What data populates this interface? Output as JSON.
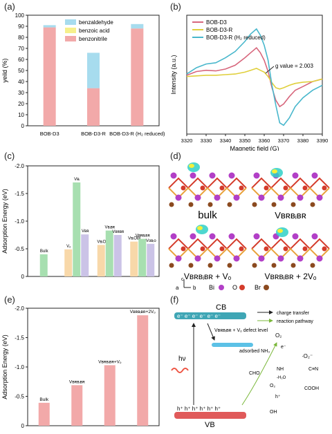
{
  "panel_labels": {
    "a": "(a)",
    "b": "(b)",
    "c": "(c)",
    "d": "(d)",
    "e": "(e)",
    "f": "(f)"
  },
  "chart_data": [
    {
      "type": "bar",
      "panel": "a",
      "ylabel": "yeild (%)",
      "ylim": [
        0,
        100
      ],
      "yticks": [
        "0",
        "10",
        "20",
        "30",
        "40",
        "50",
        "60",
        "70",
        "80",
        "90",
        "100"
      ],
      "categories": [
        "BOB-D3",
        "BOB-D3-R",
        "BOB-D3-R (H₂ reduced)"
      ],
      "series": [
        {
          "name": "benzonitrile",
          "color": "#f2a9a9",
          "values": [
            89,
            34,
            88
          ]
        },
        {
          "name": "benzoic acid",
          "color": "#f6f08c",
          "values": [
            0,
            0,
            0
          ]
        },
        {
          "name": "benzaldehyde",
          "color": "#a7dcee",
          "values": [
            2,
            32,
            4
          ]
        }
      ],
      "legend_order": [
        "benzaldehyde",
        "benzoic acid",
        "benzonitrile"
      ],
      "stacked": true
    },
    {
      "type": "line",
      "panel": "b",
      "xlabel": "Magnetic field (G)",
      "ylabel": "Intensity (a.u.)",
      "xlim": [
        3320,
        3390
      ],
      "xticks": [
        "3320",
        "3330",
        "3340",
        "3350",
        "3360",
        "3370",
        "3380",
        "3390"
      ],
      "legend_position": "top-left",
      "annotation": "g value = 2.003",
      "series": [
        {
          "name": "BOB-D3",
          "color": "#d7667c",
          "x": [
            3320,
            3325,
            3330,
            3335,
            3340,
            3345,
            3350,
            3353,
            3356,
            3358,
            3360,
            3362,
            3364,
            3366,
            3368,
            3370,
            3373,
            3376,
            3380,
            3385,
            3390
          ],
          "y": [
            0.2,
            0.5,
            0.6,
            0.55,
            0.7,
            1.0,
            1.6,
            2.0,
            2.4,
            2.0,
            1.4,
            0.5,
            -0.8,
            -1.8,
            -2.3,
            -2.1,
            -1.5,
            -1.0,
            -0.7,
            -0.3,
            -0.1
          ]
        },
        {
          "name": "BOB-D3-R",
          "color": "#e0cf3b",
          "x": [
            3320,
            3325,
            3330,
            3335,
            3340,
            3345,
            3350,
            3353,
            3356,
            3358,
            3360,
            3362,
            3364,
            3366,
            3368,
            3370,
            3373,
            3376,
            3380,
            3385,
            3390
          ],
          "y": [
            0.1,
            0.15,
            0.2,
            0.2,
            0.25,
            0.3,
            0.45,
            0.6,
            0.75,
            0.6,
            0.45,
            0.1,
            -0.4,
            -0.8,
            -0.9,
            -0.8,
            -0.6,
            -0.45,
            -0.35,
            -0.3,
            -0.1
          ]
        },
        {
          "name": "BOB-D3-R (H₂ reduced)",
          "color": "#48b7cc",
          "x": [
            3320,
            3325,
            3330,
            3335,
            3340,
            3345,
            3350,
            3353,
            3356,
            3358,
            3360,
            3362,
            3364,
            3366,
            3368,
            3370,
            3373,
            3376,
            3380,
            3385,
            3390
          ],
          "y": [
            0.3,
            0.8,
            1.1,
            1.2,
            1.6,
            2.1,
            2.9,
            3.5,
            3.9,
            3.4,
            2.6,
            1.4,
            -0.6,
            -2.2,
            -3.6,
            -3.8,
            -3.2,
            -2.3,
            -1.6,
            -1.0,
            -0.6
          ]
        }
      ]
    },
    {
      "type": "bar",
      "panel": "c",
      "ylabel": "Adsorption Energy (eV)",
      "ylim": [
        0,
        -2.0
      ],
      "yticks": [
        "0",
        "-0.5",
        "-1.0",
        "-1.5",
        "-2.0"
      ],
      "groups": [
        {
          "bars": [
            {
              "label": "Bulk",
              "value": -0.4,
              "color": "#a7dfb0"
            }
          ]
        },
        {
          "bars": [
            {
              "label": "Vₒ",
              "value": -0.49,
              "color": "#f8d8a9"
            },
            {
              "label": "Vʙᵢ",
              "value": -1.7,
              "color": "#a7dfb0"
            },
            {
              "label": "Vʙʀ",
              "value": -0.76,
              "color": "#cbc3e7"
            }
          ]
        },
        {
          "bars": [
            {
              "label": "VʙᵢO",
              "value": -0.57,
              "color": "#f8d8a9"
            },
            {
              "label": "Vʙᵢʙʀ",
              "value": -0.83,
              "color": "#a7dfb0"
            },
            {
              "label": "Vʙʀʙʀ",
              "value": -0.75,
              "color": "#cbc3e7"
            }
          ]
        },
        {
          "bars": [
            {
              "label": "VʙᵢOBi",
              "value": -0.63,
              "color": "#f8d8a9"
            },
            {
              "label": "Vʙʀʙᵢʙʀ",
              "value": -0.68,
              "color": "#a7dfb0"
            },
            {
              "label": "Vᴏʙᵢᴏ",
              "value": -0.59,
              "color": "#cbc3e7"
            }
          ]
        }
      ]
    },
    {
      "type": "bar",
      "panel": "e",
      "ylabel": "Adsorption Energy (eV)",
      "ylim": [
        0,
        -2.0
      ],
      "yticks": [
        "0",
        "-0.5",
        "-1.0",
        "-1.5",
        "-2.0"
      ],
      "categories": [
        "Bulk",
        "Vʙʀʙᵢʙʀ",
        "Vʙʀʙᵢʙʀ+Vₒ",
        "Vʙʀʙᵢʙʀ+2Vₒ"
      ],
      "values": [
        -0.39,
        -0.69,
        -1.03,
        -1.88
      ],
      "color": "#f2a9a9"
    }
  ],
  "panel_d": {
    "labels": [
      "bulk",
      "Vʙʀʙᵢʙʀ",
      "Vʙʀʙᵢʙʀ + Vₒ",
      "Vʙʀʙᵢʙʀ + 2Vₒ"
    ],
    "axes": {
      "c": "c",
      "a": "a",
      "b": "b"
    },
    "legend": [
      {
        "name": "Bi",
        "color": "#b23fc7"
      },
      {
        "name": "O",
        "color": "#d43b2b"
      },
      {
        "name": "Br",
        "color": "#8b4a1f"
      }
    ]
  },
  "panel_f": {
    "cb": "CB",
    "vb": "VB",
    "electrons": "e⁻ e⁻ e⁻ e⁻ e⁻ e⁻",
    "holes": "h⁺ h⁺ h⁺ h⁺ h⁺ h⁺",
    "defect_level": "Vʙʀʙᵢʙʀ + Vₒ\ndefect level",
    "adsorbed": "adsorbed NH₃",
    "light": "hν",
    "legend": [
      {
        "label": "charge transfer",
        "color": "#000000"
      },
      {
        "label": "reaction pathway",
        "color": "#7ab73a"
      }
    ],
    "species": {
      "o2": "O₂",
      "o2rad": "·O₂⁻",
      "e": "e⁻",
      "h": "h⁺",
      "cho": "CHO",
      "cooh": "COOH",
      "oh": "OH",
      "nh": "NH",
      "h2o": "-H₂O",
      "o2b": "O₂",
      "cn": "C≡N"
    }
  }
}
